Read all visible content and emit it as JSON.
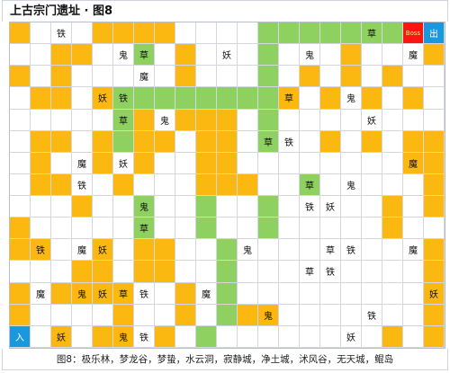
{
  "title": "上古宗门遗址 · 图8",
  "caption": "图8：极乐林，梦龙谷，梦蛰，水云洞，寂静城，净土城，沭风谷，无天城，鲲岛",
  "colors": {
    "wall": "#fbb811",
    "path": "#8fd160",
    "boss": "#ff1414",
    "exit": "#1a98de",
    "floor": "#ffffff"
  },
  "legend": {
    "boss": "Boss",
    "exit": "出",
    "entrance": "入"
  },
  "rows": [
    {
      "cells": [
        {
          "label": ""
        },
        {
          "label": ""
        },
        {
          "label": "铁"
        },
        {
          "label": ""
        },
        {
          "label": ""
        },
        {
          "label": ""
        },
        {
          "label": ""
        },
        {
          "label": ""
        },
        {
          "label": ""
        },
        {
          "label": ""
        },
        {
          "label": ""
        },
        {
          "label": ""
        },
        {
          "label": ""
        },
        {
          "label": ""
        },
        {
          "label": ""
        },
        {
          "label": ""
        },
        {
          "label": ""
        },
        {
          "label": "草"
        },
        {
          "label": ""
        },
        {
          "label": "Boss"
        },
        {
          "label": "出"
        }
      ]
    },
    {
      "cells": [
        {
          "label": ""
        },
        {
          "label": ""
        },
        {
          "label": ""
        },
        {
          "label": ""
        },
        {
          "label": ""
        },
        {
          "label": "鬼"
        },
        {
          "label": "草"
        },
        {
          "label": ""
        },
        {
          "label": ""
        },
        {
          "label": ""
        },
        {
          "label": "妖"
        },
        {
          "label": ""
        },
        {
          "label": ""
        },
        {
          "label": ""
        },
        {
          "label": "鬼"
        },
        {
          "label": ""
        },
        {
          "label": ""
        },
        {
          "label": ""
        },
        {
          "label": ""
        },
        {
          "label": "魔"
        },
        {
          "label": ""
        }
      ]
    },
    {
      "cells": [
        {
          "label": ""
        },
        {
          "label": ""
        },
        {
          "label": ""
        },
        {
          "label": ""
        },
        {
          "label": ""
        },
        {
          "label": ""
        },
        {
          "label": "魔"
        },
        {
          "label": ""
        },
        {
          "label": ""
        },
        {
          "label": ""
        },
        {
          "label": ""
        },
        {
          "label": ""
        },
        {
          "label": ""
        },
        {
          "label": ""
        },
        {
          "label": ""
        },
        {
          "label": ""
        },
        {
          "label": ""
        },
        {
          "label": ""
        },
        {
          "label": ""
        },
        {
          "label": ""
        },
        {
          "label": ""
        }
      ]
    },
    {
      "cells": [
        {
          "label": ""
        },
        {
          "label": ""
        },
        {
          "label": ""
        },
        {
          "label": ""
        },
        {
          "label": "妖"
        },
        {
          "label": "铁"
        },
        {
          "label": ""
        },
        {
          "label": ""
        },
        {
          "label": ""
        },
        {
          "label": ""
        },
        {
          "label": ""
        },
        {
          "label": ""
        },
        {
          "label": ""
        },
        {
          "label": "草"
        },
        {
          "label": ""
        },
        {
          "label": ""
        },
        {
          "label": "鬼"
        },
        {
          "label": ""
        },
        {
          "label": ""
        },
        {
          "label": ""
        },
        {
          "label": ""
        }
      ]
    },
    {
      "cells": [
        {
          "label": ""
        },
        {
          "label": ""
        },
        {
          "label": ""
        },
        {
          "label": ""
        },
        {
          "label": ""
        },
        {
          "label": ""
        },
        {
          "label": ""
        },
        {
          "label": ""
        },
        {
          "label": ""
        },
        {
          "label": ""
        },
        {
          "label": ""
        },
        {
          "label": ""
        },
        {
          "label": ""
        },
        {
          "label": ""
        },
        {
          "label": ""
        },
        {
          "label": ""
        },
        {
          "label": ""
        },
        {
          "label": ""
        },
        {
          "label": ""
        },
        {
          "label": ""
        },
        {
          "label": ""
        }
      ]
    },
    {
      "cells": [
        {
          "label": ""
        },
        {
          "label": ""
        },
        {
          "label": ""
        },
        {
          "label": ""
        },
        {
          "label": ""
        },
        {
          "label": "草"
        },
        {
          "label": ""
        },
        {
          "label": "鬼"
        },
        {
          "label": ""
        },
        {
          "label": ""
        },
        {
          "label": ""
        },
        {
          "label": ""
        },
        {
          "label": ""
        },
        {
          "label": ""
        },
        {
          "label": ""
        },
        {
          "label": ""
        },
        {
          "label": ""
        },
        {
          "label": "妖"
        },
        {
          "label": ""
        },
        {
          "label": ""
        },
        {
          "label": ""
        }
      ]
    },
    {
      "cells": [
        {
          "label": ""
        },
        {
          "label": ""
        },
        {
          "label": ""
        },
        {
          "label": ""
        },
        {
          "label": ""
        },
        {
          "label": ""
        },
        {
          "label": ""
        },
        {
          "label": ""
        },
        {
          "label": ""
        },
        {
          "label": ""
        },
        {
          "label": ""
        },
        {
          "label": ""
        },
        {
          "label": "草"
        },
        {
          "label": "铁"
        },
        {
          "label": ""
        },
        {
          "label": ""
        },
        {
          "label": ""
        },
        {
          "label": ""
        },
        {
          "label": ""
        },
        {
          "label": ""
        },
        {
          "label": ""
        }
      ]
    },
    {
      "cells": [
        {
          "label": ""
        },
        {
          "label": ""
        },
        {
          "label": ""
        },
        {
          "label": "魔"
        },
        {
          "label": ""
        },
        {
          "label": "妖"
        },
        {
          "label": ""
        },
        {
          "label": ""
        },
        {
          "label": ""
        },
        {
          "label": ""
        },
        {
          "label": ""
        },
        {
          "label": ""
        },
        {
          "label": ""
        },
        {
          "label": ""
        },
        {
          "label": ""
        },
        {
          "label": ""
        },
        {
          "label": ""
        },
        {
          "label": ""
        },
        {
          "label": ""
        },
        {
          "label": "魔"
        },
        {
          "label": ""
        }
      ]
    },
    {
      "cells": [
        {
          "label": ""
        },
        {
          "label": ""
        },
        {
          "label": ""
        },
        {
          "label": "铁"
        },
        {
          "label": ""
        },
        {
          "label": ""
        },
        {
          "label": ""
        },
        {
          "label": ""
        },
        {
          "label": ""
        },
        {
          "label": ""
        },
        {
          "label": ""
        },
        {
          "label": ""
        },
        {
          "label": ""
        },
        {
          "label": ""
        },
        {
          "label": "草"
        },
        {
          "label": ""
        },
        {
          "label": "鬼"
        },
        {
          "label": ""
        },
        {
          "label": ""
        },
        {
          "label": ""
        },
        {
          "label": ""
        }
      ]
    },
    {
      "cells": [
        {
          "label": ""
        },
        {
          "label": ""
        },
        {
          "label": ""
        },
        {
          "label": ""
        },
        {
          "label": ""
        },
        {
          "label": ""
        },
        {
          "label": ""
        },
        {
          "label": ""
        },
        {
          "label": ""
        },
        {
          "label": ""
        },
        {
          "label": ""
        },
        {
          "label": ""
        },
        {
          "label": ""
        },
        {
          "label": ""
        },
        {
          "label": ""
        },
        {
          "label": ""
        },
        {
          "label": ""
        },
        {
          "label": ""
        },
        {
          "label": ""
        },
        {
          "label": ""
        },
        {
          "label": ""
        }
      ]
    },
    {
      "cells": [
        {
          "label": ""
        },
        {
          "label": ""
        },
        {
          "label": ""
        },
        {
          "label": ""
        },
        {
          "label": ""
        },
        {
          "label": ""
        },
        {
          "label": "鬼"
        },
        {
          "label": ""
        },
        {
          "label": ""
        },
        {
          "label": ""
        },
        {
          "label": ""
        },
        {
          "label": ""
        },
        {
          "label": ""
        },
        {
          "label": ""
        },
        {
          "label": "铁"
        },
        {
          "label": "妖"
        },
        {
          "label": ""
        },
        {
          "label": ""
        },
        {
          "label": ""
        },
        {
          "label": ""
        },
        {
          "label": ""
        }
      ]
    },
    {
      "cells": [
        {
          "label": ""
        },
        {
          "label": ""
        },
        {
          "label": ""
        },
        {
          "label": ""
        },
        {
          "label": ""
        },
        {
          "label": ""
        },
        {
          "label": "草"
        },
        {
          "label": ""
        },
        {
          "label": ""
        },
        {
          "label": ""
        },
        {
          "label": ""
        },
        {
          "label": ""
        },
        {
          "label": ""
        },
        {
          "label": ""
        },
        {
          "label": ""
        },
        {
          "label": ""
        },
        {
          "label": ""
        },
        {
          "label": ""
        },
        {
          "label": ""
        },
        {
          "label": ""
        },
        {
          "label": ""
        }
      ]
    },
    {
      "cells": [
        {
          "label": ""
        },
        {
          "label": "铁"
        },
        {
          "label": ""
        },
        {
          "label": "魔"
        },
        {
          "label": "妖"
        },
        {
          "label": ""
        },
        {
          "label": ""
        },
        {
          "label": ""
        },
        {
          "label": ""
        },
        {
          "label": ""
        },
        {
          "label": ""
        },
        {
          "label": "鬼"
        },
        {
          "label": ""
        },
        {
          "label": ""
        },
        {
          "label": ""
        },
        {
          "label": "草"
        },
        {
          "label": "铁"
        },
        {
          "label": ""
        },
        {
          "label": ""
        },
        {
          "label": "魔"
        },
        {
          "label": ""
        }
      ]
    },
    {
      "cells": [
        {
          "label": ""
        },
        {
          "label": ""
        },
        {
          "label": ""
        },
        {
          "label": ""
        },
        {
          "label": ""
        },
        {
          "label": ""
        },
        {
          "label": ""
        },
        {
          "label": ""
        },
        {
          "label": ""
        },
        {
          "label": ""
        },
        {
          "label": ""
        },
        {
          "label": ""
        },
        {
          "label": ""
        },
        {
          "label": ""
        },
        {
          "label": "草"
        },
        {
          "label": "铁"
        },
        {
          "label": ""
        },
        {
          "label": ""
        },
        {
          "label": ""
        },
        {
          "label": ""
        },
        {
          "label": ""
        }
      ]
    },
    {
      "cells": [
        {
          "label": ""
        },
        {
          "label": ""
        },
        {
          "label": ""
        },
        {
          "label": ""
        },
        {
          "label": ""
        },
        {
          "label": ""
        },
        {
          "label": ""
        },
        {
          "label": ""
        },
        {
          "label": ""
        },
        {
          "label": ""
        },
        {
          "label": ""
        },
        {
          "label": ""
        },
        {
          "label": ""
        },
        {
          "label": ""
        },
        {
          "label": ""
        },
        {
          "label": ""
        },
        {
          "label": ""
        },
        {
          "label": ""
        },
        {
          "label": ""
        },
        {
          "label": ""
        },
        {
          "label": ""
        }
      ]
    }
  ],
  "extra_rows": [
    {
      "cells": [
        {
          "label": ""
        },
        {
          "label": "魔"
        },
        {
          "label": ""
        },
        {
          "label": "鬼"
        },
        {
          "label": "妖"
        },
        {
          "label": "草"
        },
        {
          "label": "铁"
        },
        {
          "label": ""
        },
        {
          "label": ""
        },
        {
          "label": "魔"
        },
        {
          "label": ""
        },
        {
          "label": ""
        },
        {
          "label": ""
        },
        {
          "label": ""
        },
        {
          "label": ""
        },
        {
          "label": ""
        },
        {
          "label": ""
        },
        {
          "label": ""
        },
        {
          "label": ""
        },
        {
          "label": ""
        },
        {
          "label": "妖"
        }
      ]
    },
    {
      "cells": [
        {
          "label": ""
        },
        {
          "label": ""
        },
        {
          "label": ""
        },
        {
          "label": ""
        },
        {
          "label": ""
        },
        {
          "label": ""
        },
        {
          "label": ""
        },
        {
          "label": ""
        },
        {
          "label": ""
        },
        {
          "label": ""
        },
        {
          "label": ""
        },
        {
          "label": ""
        },
        {
          "label": "鬼"
        },
        {
          "label": ""
        },
        {
          "label": ""
        },
        {
          "label": ""
        },
        {
          "label": ""
        },
        {
          "label": "铁"
        },
        {
          "label": ""
        },
        {
          "label": ""
        },
        {
          "label": ""
        }
      ]
    },
    {
      "cells": [
        {
          "label": ""
        },
        {
          "label": ""
        },
        {
          "label": ""
        },
        {
          "label": ""
        },
        {
          "label": ""
        },
        {
          "label": ""
        },
        {
          "label": ""
        },
        {
          "label": ""
        },
        {
          "label": ""
        },
        {
          "label": "魔"
        },
        {
          "label": ""
        },
        {
          "label": ""
        },
        {
          "label": ""
        },
        {
          "label": ""
        },
        {
          "label": ""
        },
        {
          "label": "草"
        },
        {
          "label": ""
        },
        {
          "label": ""
        },
        {
          "label": ""
        },
        {
          "label": ""
        },
        {
          "label": "魔"
        }
      ]
    },
    {
      "cells": [
        {
          "label": ""
        },
        {
          "label": ""
        },
        {
          "label": "妖"
        },
        {
          "label": ""
        },
        {
          "label": ""
        },
        {
          "label": "鬼"
        },
        {
          "label": "铁"
        },
        {
          "label": ""
        },
        {
          "label": ""
        },
        {
          "label": ""
        },
        {
          "label": ""
        },
        {
          "label": ""
        },
        {
          "label": ""
        },
        {
          "label": ""
        },
        {
          "label": ""
        },
        {
          "label": ""
        },
        {
          "label": "妖"
        },
        {
          "label": ""
        },
        {
          "label": ""
        },
        {
          "label": ""
        },
        {
          "label": ""
        }
      ]
    },
    {
      "cells": [
        {
          "label": "入"
        },
        {
          "label": ""
        },
        {
          "label": ""
        },
        {
          "label": ""
        },
        {
          "label": ""
        },
        {
          "label": ""
        },
        {
          "label": ""
        },
        {
          "label": ""
        },
        {
          "label": ""
        },
        {
          "label": ""
        },
        {
          "label": ""
        },
        {
          "label": ""
        },
        {
          "label": ""
        },
        {
          "label": ""
        },
        {
          "label": ""
        },
        {
          "label": ""
        },
        {
          "label": ""
        },
        {
          "label": ""
        },
        {
          "label": ""
        },
        {
          "label": ""
        },
        {
          "label": ""
        }
      ]
    }
  ]
}
